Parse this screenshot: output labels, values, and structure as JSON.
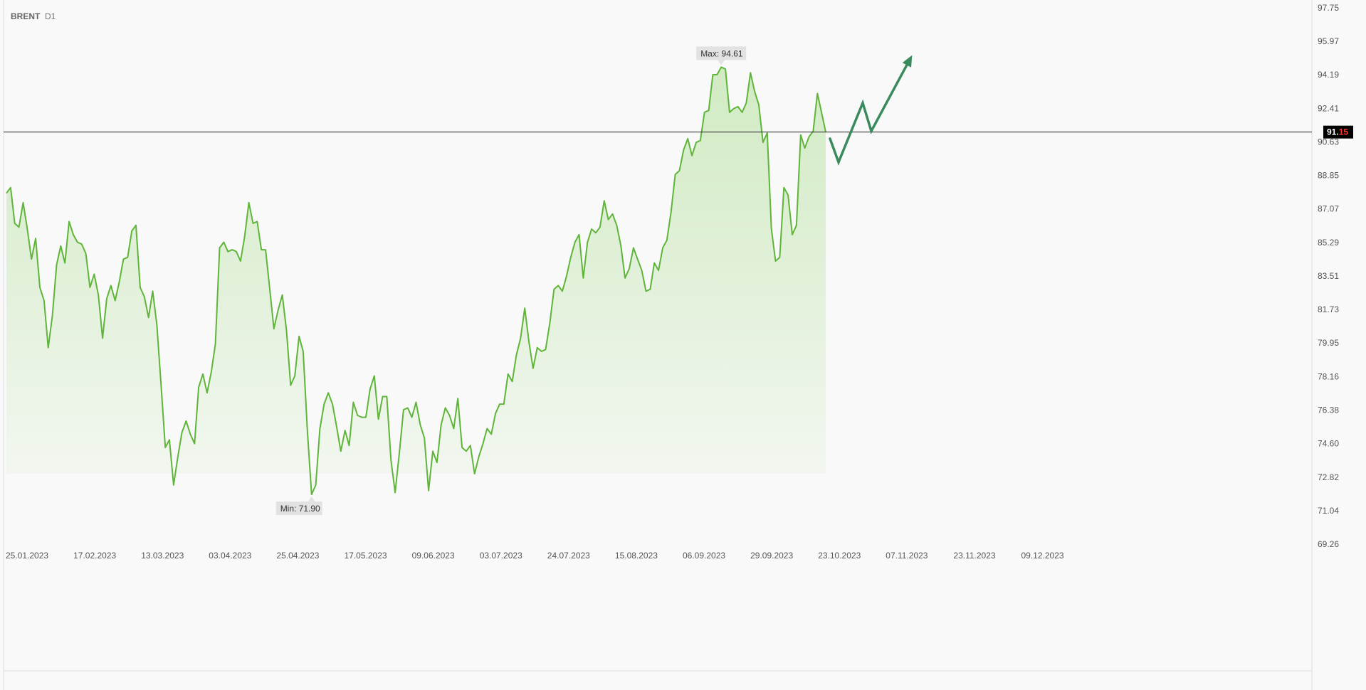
{
  "chart_data": {
    "type": "area",
    "symbol": "BRENT",
    "timeframe": "D1",
    "grid": false,
    "ylim": [
      69.26,
      97.75
    ],
    "y_ticks": [
      "97.75",
      "95.97",
      "94.19",
      "92.41",
      "90.63",
      "88.85",
      "87.07",
      "85.29",
      "83.51",
      "81.73",
      "79.95",
      "78.16",
      "76.38",
      "74.60",
      "72.82",
      "71.04",
      "69.26"
    ],
    "x_ticks": [
      "25.01.2023",
      "17.02.2023",
      "13.03.2023",
      "03.04.2023",
      "25.04.2023",
      "17.05.2023",
      "09.06.2023",
      "03.07.2023",
      "24.07.2023",
      "15.08.2023",
      "06.09.2023",
      "29.09.2023",
      "23.10.2023",
      "07.11.2023",
      "23.11.2023",
      "09.12.2023"
    ],
    "current_price": {
      "label_main": "91.",
      "label_tail": "15",
      "value": 91.15,
      "main_color": "#ffffff",
      "tail_color": "#ff3b30",
      "bg_color": "#000000"
    },
    "max_annotation": {
      "label": "Max: 94.61",
      "value": 94.61
    },
    "min_annotation": {
      "label": "Min: 71.90",
      "value": 71.9
    },
    "colors": {
      "line": "#5fb53a",
      "fill": "#8fd36a",
      "forecast": "#3a8a5e",
      "background": "#f9f9f9"
    },
    "series": [
      {
        "values": [
          87.9,
          88.2,
          86.3,
          86.1,
          87.4,
          86.0,
          84.4,
          85.5,
          82.9,
          82.2,
          79.7,
          81.4,
          84.1,
          85.1,
          84.2,
          86.4,
          85.7,
          85.3,
          85.2,
          84.7,
          82.9,
          83.6,
          82.5,
          80.2,
          82.3,
          83.0,
          82.2,
          83.2,
          84.4,
          84.5,
          85.9,
          86.2,
          82.9,
          82.4,
          81.3,
          82.7,
          80.9,
          77.7,
          74.4,
          74.8,
          72.4,
          73.9,
          75.2,
          75.8,
          75.1,
          74.6,
          77.6,
          78.3,
          77.3,
          78.4,
          79.9,
          85.0,
          85.3,
          84.8,
          84.9,
          84.8,
          84.3,
          85.6,
          87.4,
          86.3,
          86.4,
          84.9,
          84.9,
          82.8,
          80.7,
          81.7,
          82.5,
          80.6,
          77.7,
          78.2,
          80.3,
          79.5,
          75.3,
          71.9,
          72.4,
          75.4,
          76.7,
          77.3,
          76.7,
          75.5,
          74.2,
          75.3,
          74.5,
          76.8,
          76.1,
          76.0,
          76.0,
          77.5,
          78.2,
          75.9,
          77.1,
          77.1,
          73.7,
          72.0,
          74.1,
          76.4,
          76.5,
          76.0,
          76.8,
          75.6,
          74.9,
          72.1,
          74.2,
          73.6,
          75.6,
          76.5,
          76.1,
          75.4,
          77.0,
          74.4,
          74.2,
          74.5,
          73.0,
          73.9,
          74.6,
          75.4,
          75.1,
          76.2,
          76.7,
          76.7,
          78.3,
          77.9,
          79.3,
          80.2,
          81.8,
          80.0,
          78.6,
          79.7,
          79.5,
          79.6,
          81.0,
          82.8,
          83.0,
          82.7,
          83.5,
          84.5,
          85.3,
          85.7,
          83.4,
          85.3,
          86.0,
          85.8,
          86.1,
          87.5,
          86.5,
          86.8,
          86.2,
          85.1,
          83.4,
          83.9,
          85.0,
          84.4,
          83.8,
          82.7,
          82.8,
          84.2,
          83.8,
          85.0,
          85.4,
          86.9,
          88.9,
          89.1,
          90.2,
          90.8,
          89.9,
          90.6,
          90.7,
          92.2,
          92.3,
          94.2,
          94.2,
          94.6,
          94.5,
          92.2,
          92.4,
          92.5,
          92.2,
          92.7,
          94.3,
          93.3,
          92.6,
          90.6,
          91.1,
          86.0,
          84.3,
          84.5,
          88.2,
          87.8,
          85.7,
          86.2,
          91.0,
          90.3,
          90.9,
          91.2,
          93.2,
          92.2,
          91.15
        ]
      }
    ],
    "forecast_values": [
      90.8,
      89.55,
      92.7,
      91.2,
      95.0
    ]
  }
}
